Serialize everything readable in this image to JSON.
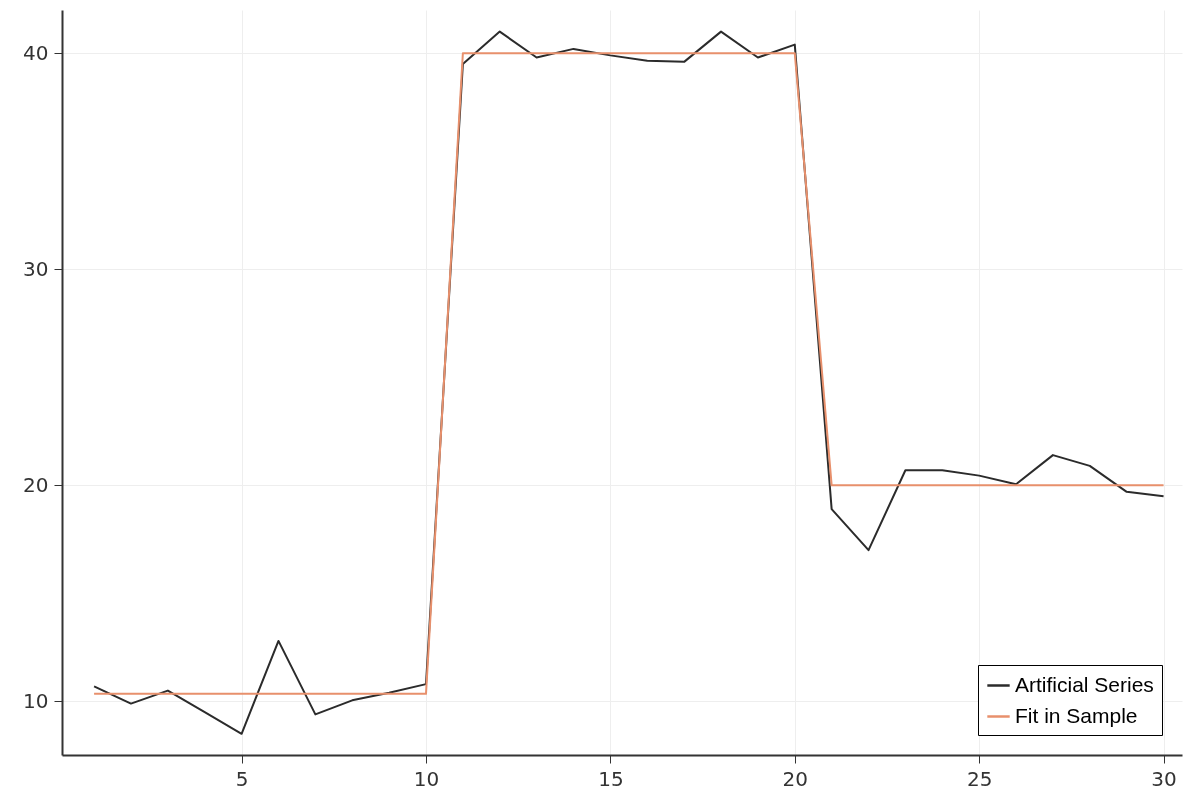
{
  "chart_data": {
    "type": "line",
    "x": [
      1,
      2,
      3,
      4,
      5,
      6,
      7,
      8,
      9,
      10,
      11,
      12,
      13,
      14,
      15,
      16,
      17,
      18,
      19,
      20,
      21,
      22,
      23,
      24,
      25,
      26,
      27,
      28,
      29,
      30
    ],
    "series": [
      {
        "name": "Artificial Series",
        "color": "#2b2b2b",
        "values": [
          10.7,
          9.9,
          10.5,
          9.5,
          8.5,
          12.8,
          9.4,
          10.05,
          10.4,
          10.8,
          39.5,
          41.0,
          39.8,
          40.2,
          39.9,
          39.65,
          39.6,
          41.0,
          39.8,
          40.4,
          18.9,
          17.0,
          20.7,
          20.7,
          20.45,
          20.05,
          21.4,
          20.9,
          19.7,
          19.5
        ]
      },
      {
        "name": "Fit in Sample",
        "color": "#e8906c",
        "values": [
          10.35,
          10.35,
          10.35,
          10.35,
          10.35,
          10.35,
          10.35,
          10.35,
          10.35,
          10.35,
          40,
          40,
          40,
          40,
          40,
          40,
          40,
          40,
          40,
          40,
          20,
          20,
          20,
          20,
          20,
          20,
          20,
          20,
          20,
          20
        ]
      }
    ],
    "xlim": [
      0.13,
      30.5
    ],
    "xticks": [
      5,
      10,
      15,
      20,
      25,
      30
    ],
    "ylim": [
      7.52,
      42.0
    ],
    "yticks": [
      10,
      20,
      30,
      40
    ],
    "grid": true,
    "legend": "bottom right",
    "line_style": "solid"
  }
}
